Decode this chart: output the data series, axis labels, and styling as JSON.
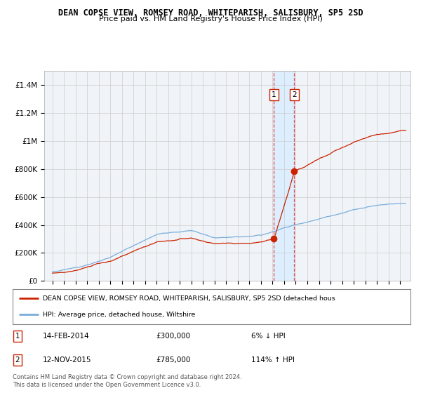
{
  "title": "DEAN COPSE VIEW, ROMSEY ROAD, WHITEPARISH, SALISBURY, SP5 2SD",
  "subtitle": "Price paid vs. HM Land Registry's House Price Index (HPI)",
  "legend_line1": "DEAN COPSE VIEW, ROMSEY ROAD, WHITEPARISH, SALISBURY, SP5 2SD (detached hous",
  "legend_line2": "HPI: Average price, detached house, Wiltshire",
  "footer": "Contains HM Land Registry data © Crown copyright and database right 2024.\nThis data is licensed under the Open Government Licence v3.0.",
  "transaction1_date": "14-FEB-2014",
  "transaction1_price": "£300,000",
  "transaction1_hpi": "6% ↓ HPI",
  "transaction2_date": "12-NOV-2015",
  "transaction2_price": "£785,000",
  "transaction2_hpi": "114% ↑ HPI",
  "hpi_color": "#7aaddb",
  "property_color": "#cc2200",
  "marker_color": "#cc2200",
  "highlight_color": "#ddeeff",
  "dashed_color": "#dd4444",
  "grid_color": "#cccccc",
  "bg_color": "#f0f4f8",
  "yticks": [
    0,
    200000,
    400000,
    600000,
    800000,
    1000000,
    1200000,
    1400000
  ],
  "ytick_labels": [
    "£0",
    "£200K",
    "£400K",
    "£600K",
    "£800K",
    "£1M",
    "£1.2M",
    "£1.4M"
  ],
  "transaction1_year": 2014.12,
  "transaction2_year": 2015.87,
  "sale1_price": 300000,
  "sale2_price": 785000
}
